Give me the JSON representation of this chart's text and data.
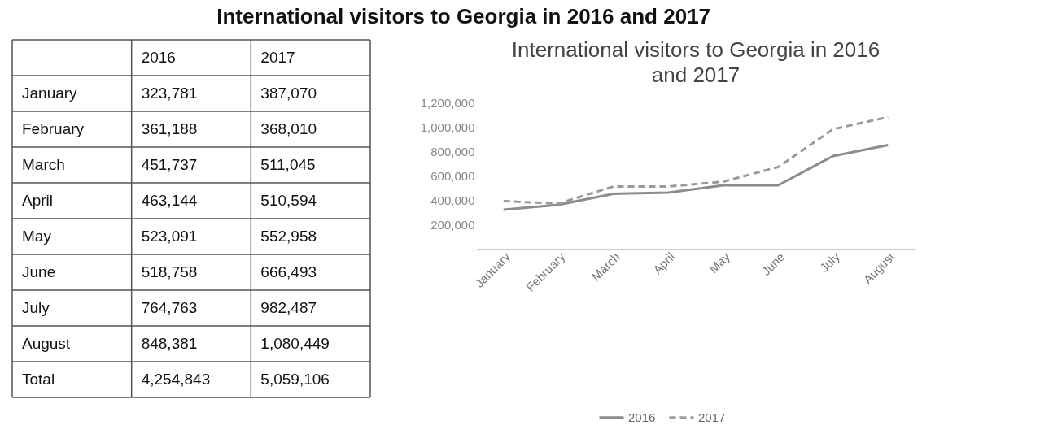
{
  "chart_data": [
    {
      "type": "other",
      "title": "International visitors to Georgia in 2016 and 2017",
      "categories": [
        "January",
        "February",
        "March",
        "April",
        "May",
        "June",
        "July",
        "August",
        "Total"
      ],
      "series": [
        {
          "name": "2016",
          "values": [
            323781,
            361188,
            451737,
            463144,
            523091,
            518758,
            764763,
            848381,
            4254843
          ],
          "value_labels": [
            "323,781",
            "361,188",
            "451,737",
            "463,144",
            "523,091",
            "518,758",
            "764,763",
            "848,381",
            "4,254,843"
          ]
        },
        {
          "name": "2017",
          "values": [
            387070,
            368010,
            511045,
            510594,
            552958,
            666493,
            982487,
            1080449,
            5059106
          ],
          "value_labels": [
            "387,070",
            "368,010",
            "511,045",
            "510,594",
            "552,958",
            "666,493",
            "982,487",
            "1,080,449",
            "5,059,106"
          ]
        }
      ]
    },
    {
      "type": "line",
      "title": "International visitors to Georgia in 2016 and 2017",
      "categories": [
        "January",
        "February",
        "March",
        "April",
        "May",
        "June",
        "July",
        "August"
      ],
      "series": [
        {
          "name": "2016",
          "color": "#8c8c8c",
          "line_style": "solid",
          "values": [
            320000,
            360000,
            450000,
            460000,
            520000,
            520000,
            760000,
            850000
          ]
        },
        {
          "name": "2017",
          "color": "#9a9a9a",
          "line_style": "dashed",
          "values": [
            390000,
            370000,
            510000,
            510000,
            550000,
            670000,
            980000,
            1080000
          ]
        }
      ],
      "ylim": [
        0,
        1200000
      ],
      "yticks": [
        {
          "value": 0,
          "label": "-"
        },
        {
          "value": 200000,
          "label": "200,000"
        },
        {
          "value": 400000,
          "label": "400,000"
        },
        {
          "value": 600000,
          "label": "600,000"
        },
        {
          "value": 800000,
          "label": "800,000"
        },
        {
          "value": 1000000,
          "label": "1,000,000"
        },
        {
          "value": 1200000,
          "label": "1,200,000"
        }
      ],
      "grid": false,
      "legend": "bottom"
    }
  ]
}
